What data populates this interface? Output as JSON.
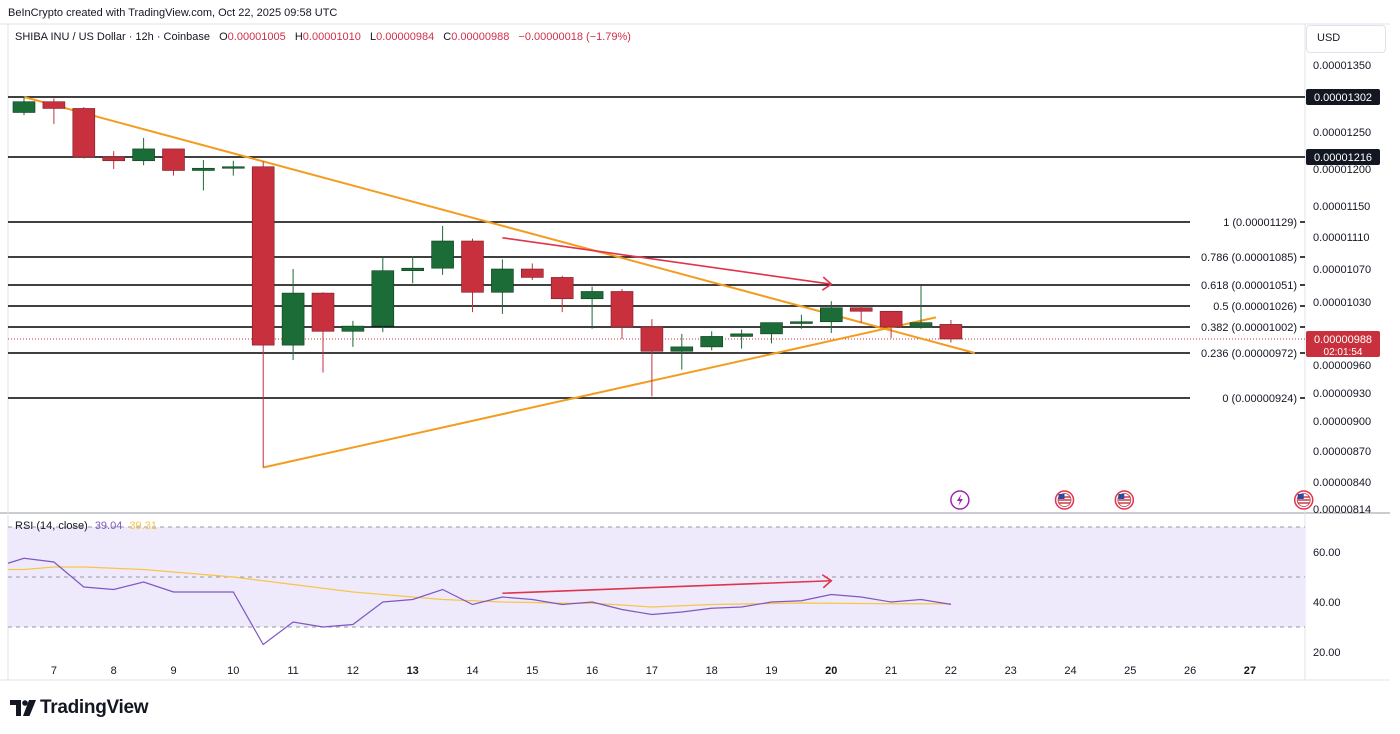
{
  "header": {
    "attribution": "BeInCrypto created with TradingView.com, Oct 22, 2025 09:58 UTC",
    "symbol": "SHIBA INU / US Dollar · 12h · Coinbase",
    "ohlc": {
      "o_label": "O",
      "o": "0.00001005",
      "h_label": "H",
      "h": "0.00001010",
      "l_label": "L",
      "l": "0.00000984",
      "c_label": "C",
      "c": "0.00000988",
      "change": "−0.00000018 (−1.79%)"
    },
    "currency": "USD"
  },
  "rsi_legend": {
    "label": "RSI (14, close)",
    "rsi_value": "39.04",
    "ma_value": "39.31"
  },
  "branding": {
    "logo_text": "TradingView"
  },
  "colors": {
    "bull": "#1b6c36",
    "bear": "#c8303e",
    "triangle": "#f39c1f",
    "fib_line": "#000000",
    "rsi_line": "#7e57c2",
    "rsi_ma": "#f7c548",
    "rsi_band": "#efeafb",
    "arrow": "#e0334c"
  },
  "chart_data": {
    "type": "candlestick",
    "title": "SHIBA INU / US Dollar · 12h · Coinbase",
    "x_ticks": [
      "7",
      "8",
      "9",
      "10",
      "11",
      "12",
      "13",
      "14",
      "15",
      "16",
      "17",
      "18",
      "19",
      "20",
      "21",
      "22",
      "23",
      "24",
      "25",
      "26",
      "27"
    ],
    "price_ticks": [
      "0.00001350",
      "0.00001250",
      "0.00001200",
      "0.00001150",
      "0.00001110",
      "0.00001070",
      "0.00001030",
      "0.00000960",
      "0.00000930",
      "0.00000900",
      "0.00000870",
      "0.00000840",
      "0.00000814"
    ],
    "candles": [
      {
        "o": 1.279e-05,
        "h": 1.303e-05,
        "l": 1.275e-05,
        "c": 1.295e-05
      },
      {
        "o": 1.295e-05,
        "h": 1.3e-05,
        "l": 1.262e-05,
        "c": 1.285e-05
      },
      {
        "o": 1.285e-05,
        "h": 1.287e-05,
        "l": 1.214e-05,
        "c": 1.216e-05
      },
      {
        "o": 1.216e-05,
        "h": 1.224e-05,
        "l": 1.2e-05,
        "c": 1.211e-05
      },
      {
        "o": 1.211e-05,
        "h": 1.242e-05,
        "l": 1.205e-05,
        "c": 1.227e-05
      },
      {
        "o": 1.227e-05,
        "h": 1.227e-05,
        "l": 1.191e-05,
        "c": 1.198e-05
      },
      {
        "o": 1.198e-05,
        "h": 1.212e-05,
        "l": 1.171e-05,
        "c": 1.201e-05
      },
      {
        "o": 1.201e-05,
        "h": 1.211e-05,
        "l": 1.191e-05,
        "c": 1.203e-05
      },
      {
        "o": 1.203e-05,
        "h": 1.21e-05,
        "l": 8.54e-06,
        "c": 9.81e-06
      },
      {
        "o": 9.81e-06,
        "h": 1.07e-05,
        "l": 9.65e-06,
        "c": 1.041e-05
      },
      {
        "o": 1.041e-05,
        "h": 1.042e-05,
        "l": 9.52e-06,
        "c": 9.97e-06
      },
      {
        "o": 9.97e-06,
        "h": 1.009e-05,
        "l": 9.79e-06,
        "c": 1.003e-05
      },
      {
        "o": 1.003e-05,
        "h": 1.085e-05,
        "l": 9.96e-06,
        "c": 1.068e-05
      },
      {
        "o": 1.068e-05,
        "h": 1.086e-05,
        "l": 1.053e-05,
        "c": 1.071e-05
      },
      {
        "o": 1.071e-05,
        "h": 1.124e-05,
        "l": 1.063e-05,
        "c": 1.105e-05
      },
      {
        "o": 1.105e-05,
        "h": 1.108e-05,
        "l": 1.019e-05,
        "c": 1.042e-05
      },
      {
        "o": 1.042e-05,
        "h": 1.082e-05,
        "l": 1.017e-05,
        "c": 1.07e-05
      },
      {
        "o": 1.07e-05,
        "h": 1.077e-05,
        "l": 1.057e-05,
        "c": 1.06e-05
      },
      {
        "o": 1.06e-05,
        "h": 1.062e-05,
        "l": 1.019e-05,
        "c": 1.034e-05
      },
      {
        "o": 1.034e-05,
        "h": 1.049e-05,
        "l": 1e-05,
        "c": 1.043e-05
      },
      {
        "o": 1.043e-05,
        "h": 1.046e-05,
        "l": 9.88e-06,
        "c": 1.002e-05
      },
      {
        "o": 1.002e-05,
        "h": 1.011e-05,
        "l": 9.26e-06,
        "c": 9.74e-06
      },
      {
        "o": 9.74e-06,
        "h": 9.94e-06,
        "l": 9.55e-06,
        "c": 9.79e-06
      },
      {
        "o": 9.79e-06,
        "h": 9.97e-06,
        "l": 9.75e-06,
        "c": 9.91e-06
      },
      {
        "o": 9.91e-06,
        "h": 9.99e-06,
        "l": 9.77e-06,
        "c": 9.94e-06
      },
      {
        "o": 9.94e-06,
        "h": 1.006e-05,
        "l": 9.83e-06,
        "c": 1.007e-05
      },
      {
        "o": 1.006e-05,
        "h": 1.016e-05,
        "l": 1e-05,
        "c": 1.008e-05
      },
      {
        "o": 1.008e-05,
        "h": 1.031e-05,
        "l": 9.95e-06,
        "c": 1.024e-05
      },
      {
        "o": 1.024e-05,
        "h": 1.026e-05,
        "l": 1.007e-05,
        "c": 1.02e-05
      },
      {
        "o": 1.02e-05,
        "h": 1.02e-05,
        "l": 9.89e-06,
        "c": 1.002e-05
      },
      {
        "o": 1.002e-05,
        "h": 1.05e-05,
        "l": 1e-05,
        "c": 1.007e-05
      },
      {
        "o": 1.005e-05,
        "h": 1.01e-05,
        "l": 9.84e-06,
        "c": 9.88e-06
      }
    ],
    "price_lines": [
      {
        "value": 1.302e-05,
        "label": "0.00001302",
        "tag": true
      },
      {
        "value": 1.216e-05,
        "label": "0.00001216",
        "tag": true
      },
      {
        "value": 1.129e-05,
        "label": "1 (0.00001129)"
      },
      {
        "value": 1.085e-05,
        "label": "0.786 (0.00001085)"
      },
      {
        "value": 1.051e-05,
        "label": "0.618 (0.00001051)"
      },
      {
        "value": 1.026e-05,
        "label": "0.5 (0.00001026)"
      },
      {
        "value": 1.002e-05,
        "label": "0.382 (0.00001002)"
      },
      {
        "value": 9.72e-06,
        "label": "0.236 (0.00000972)"
      },
      {
        "value": 9.24e-06,
        "label": "0 (0.00000924)"
      }
    ],
    "current_price": {
      "value": 9.88e-06,
      "label": "0.00000988",
      "countdown": "02:01:54"
    },
    "triangle": {
      "upper": [
        {
          "x": 0,
          "y": 1.302e-05
        },
        {
          "x": 31.8,
          "y": 9.72e-06
        }
      ],
      "lower": [
        {
          "x": 8,
          "y": 8.54e-06
        },
        {
          "x": 30.5,
          "y": 1.013e-05
        }
      ]
    },
    "price_arrow": [
      {
        "x": 16,
        "y": 1.109e-05
      },
      {
        "x": 27,
        "y": 1.052e-05
      }
    ],
    "event_markers": [
      {
        "x": 31.3,
        "icon": "lightning-icon"
      },
      {
        "x": 34.8,
        "icon": "us-flag-icon"
      },
      {
        "x": 36.8,
        "icon": "us-flag-icon"
      },
      {
        "x": 42.8,
        "icon": "us-flag-icon"
      }
    ],
    "rsi": {
      "ticks": [
        "60.00",
        "40.00",
        "20.00"
      ],
      "bands": [
        70,
        50,
        30
      ],
      "values": [
        57.5,
        56,
        46,
        45,
        48,
        44,
        44,
        44,
        23,
        32,
        30,
        31,
        40,
        41,
        45,
        39,
        42,
        41,
        39,
        40,
        37,
        35,
        36,
        37.5,
        38,
        40,
        40.5,
        43,
        42,
        40,
        41,
        39.04
      ],
      "ma": [
        53,
        54,
        54,
        53.5,
        53,
        52,
        51,
        50,
        48.5,
        47,
        45.5,
        44,
        43,
        42,
        41,
        40.5,
        40,
        39.8,
        39.5,
        39.5,
        38.8,
        38,
        38.5,
        39,
        39.2,
        39.4,
        39.6,
        39.5,
        39.4,
        39.3,
        39.3,
        39.31
      ],
      "arrow": [
        {
          "x": 16,
          "y": 43.5
        },
        {
          "x": 27,
          "y": 48.5
        }
      ]
    }
  }
}
